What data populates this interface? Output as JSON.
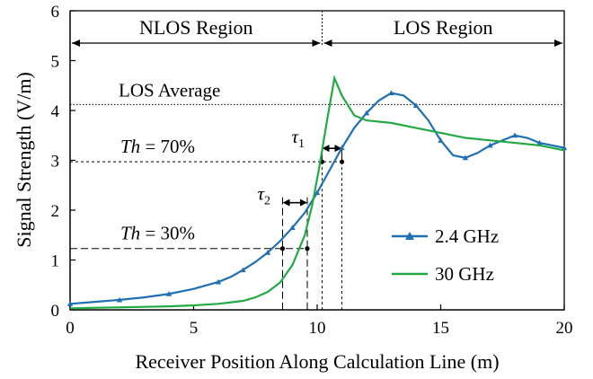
{
  "chart_data": {
    "type": "line",
    "title": "",
    "xlabel": "Receiver Position Along Calculation Line (m)",
    "ylabel": "Signal Strength (V/m)",
    "xlim": [
      0,
      20
    ],
    "ylim": [
      0,
      6
    ],
    "xticks": [
      "0",
      "5",
      "10",
      "15",
      "20"
    ],
    "yticks": [
      "0",
      "1",
      "2",
      "3",
      "4",
      "5",
      "6"
    ],
    "grid": false,
    "legend_position": "right",
    "series": [
      {
        "name": "2.4 GHz",
        "color": "#1f6fb5",
        "marker": "triangle",
        "x": [
          0,
          1,
          2,
          3,
          4,
          5,
          6,
          6.5,
          7,
          7.5,
          8,
          8.5,
          9,
          9.5,
          10,
          10.5,
          11,
          11.5,
          12,
          12.5,
          13,
          13.5,
          14,
          14.5,
          15,
          15.5,
          16,
          16.5,
          17,
          17.5,
          18,
          18.5,
          19,
          19.5,
          20
        ],
        "values": [
          0.12,
          0.16,
          0.2,
          0.25,
          0.32,
          0.42,
          0.56,
          0.66,
          0.8,
          0.96,
          1.15,
          1.38,
          1.65,
          1.95,
          2.35,
          2.8,
          3.25,
          3.65,
          3.95,
          4.2,
          4.35,
          4.3,
          4.1,
          3.8,
          3.4,
          3.1,
          3.05,
          3.15,
          3.3,
          3.4,
          3.5,
          3.45,
          3.35,
          3.3,
          3.25
        ]
      },
      {
        "name": "30 GHz",
        "color": "#22aa44",
        "marker": "none",
        "x": [
          0,
          1,
          2,
          3,
          4,
          5,
          6,
          7,
          7.5,
          8,
          8.5,
          9,
          9.5,
          9.8,
          10.1,
          10.4,
          10.7,
          11,
          11.5,
          12,
          13,
          14,
          15,
          16,
          17,
          18,
          19,
          20
        ],
        "values": [
          0.03,
          0.04,
          0.05,
          0.06,
          0.07,
          0.09,
          0.12,
          0.18,
          0.25,
          0.36,
          0.55,
          0.9,
          1.5,
          2.1,
          2.9,
          3.8,
          4.65,
          4.3,
          3.9,
          3.8,
          3.75,
          3.65,
          3.55,
          3.45,
          3.4,
          3.35,
          3.3,
          3.2
        ]
      }
    ],
    "annotations": {
      "nlos_label": "NLOS Region",
      "los_label": "LOS Region",
      "los_average_label": "LOS Average",
      "los_average_value": 4.12,
      "region_boundary_x": 10.2,
      "th70": {
        "prefix": "Th",
        "rest": " = 70%",
        "y": 2.97
      },
      "th30": {
        "prefix": "Th",
        "rest": " = 30%",
        "y": 1.23
      },
      "tau1": {
        "symbol": "τ",
        "sub": "1",
        "x_start": 10.2,
        "x_end": 11.0
      },
      "tau2": {
        "symbol": "τ",
        "sub": "2",
        "x_start": 8.6,
        "x_end": 9.6
      }
    }
  }
}
